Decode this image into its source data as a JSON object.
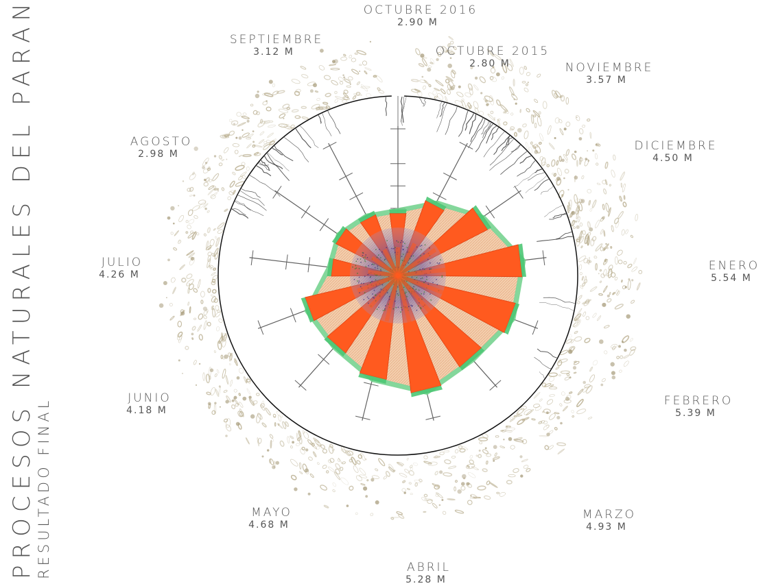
{
  "title": "PROCESOS NATURALES DEL PARANÁ MEDIO",
  "subtitle": "RESULTADO FINAL",
  "colors": {
    "bar": "#ff5a1f",
    "bar_outline": "#e04010",
    "band": "#f0c4a0",
    "band_green": "#6fd08a",
    "core": "#5a4a9a",
    "axis": "#606060",
    "ring": "#111111",
    "water": "#b8ad8e"
  },
  "chart_data": {
    "type": "radial-bar",
    "unit": "M",
    "categories": [
      "OCTUBRE 2015",
      "NOVIEMBRE",
      "DICIEMBRE",
      "ENERO",
      "FEBRERO",
      "MARZO",
      "ABRIL",
      "MAYO",
      "JUNIO",
      "JULIO",
      "AGOSTO",
      "SEPTIEMBRE",
      "OCTUBRE 2016"
    ],
    "value_labels": [
      "2.80 M",
      "3.57 M",
      "4.50 M",
      "5.54 M",
      "5.39 M",
      "4.93 M",
      "5.28 M",
      "4.68 M",
      "4.18 M",
      "4.26 M",
      "2.98 M",
      "3.12 M",
      "2.90 M"
    ],
    "values": [
      2.8,
      3.57,
      4.5,
      5.54,
      5.39,
      4.93,
      5.28,
      4.68,
      4.18,
      4.26,
      2.98,
      3.12,
      2.9
    ],
    "rlim": [
      0,
      6
    ]
  }
}
